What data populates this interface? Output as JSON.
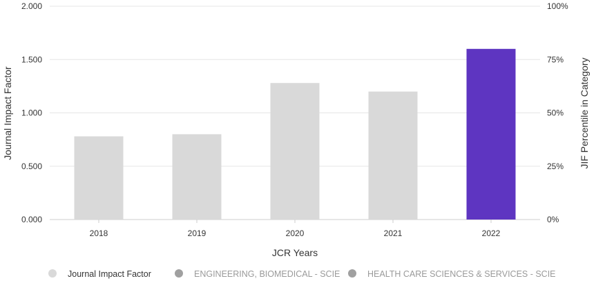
{
  "chart_data": {
    "type": "bar",
    "categories": [
      "2018",
      "2019",
      "2020",
      "2021",
      "2022"
    ],
    "series": [
      {
        "name": "Journal Impact Factor",
        "values": [
          0.78,
          0.8,
          1.28,
          1.2,
          1.6
        ],
        "colors": [
          "#d9d9d9",
          "#d9d9d9",
          "#d9d9d9",
          "#d9d9d9",
          "#5e35c1"
        ]
      }
    ],
    "xlabel": "JCR Years",
    "ylabel": "Journal Impact Factor",
    "ylabel_right": "JIF Percentile in Category",
    "ylim": [
      0,
      2
    ],
    "ylim_right": [
      0,
      100
    ],
    "yticks": [
      "0.000",
      "0.500",
      "1.000",
      "1.500",
      "2.000"
    ],
    "yticks_right": [
      "0%",
      "25%",
      "50%",
      "75%",
      "100%"
    ],
    "grid": true,
    "legend_position": "bottom-left",
    "legend": [
      {
        "label": "Journal Impact Factor",
        "marker_color": "#d9d9d9",
        "text_color": "#333333"
      },
      {
        "label": "ENGINEERING, BIOMEDICAL - SCIE",
        "marker_color": "#a0a0a0",
        "text_color": "#9a9a9a"
      },
      {
        "label": "HEALTH CARE SCIENCES & SERVICES - SCIE",
        "marker_color": "#a0a0a0",
        "text_color": "#9a9a9a"
      }
    ]
  }
}
